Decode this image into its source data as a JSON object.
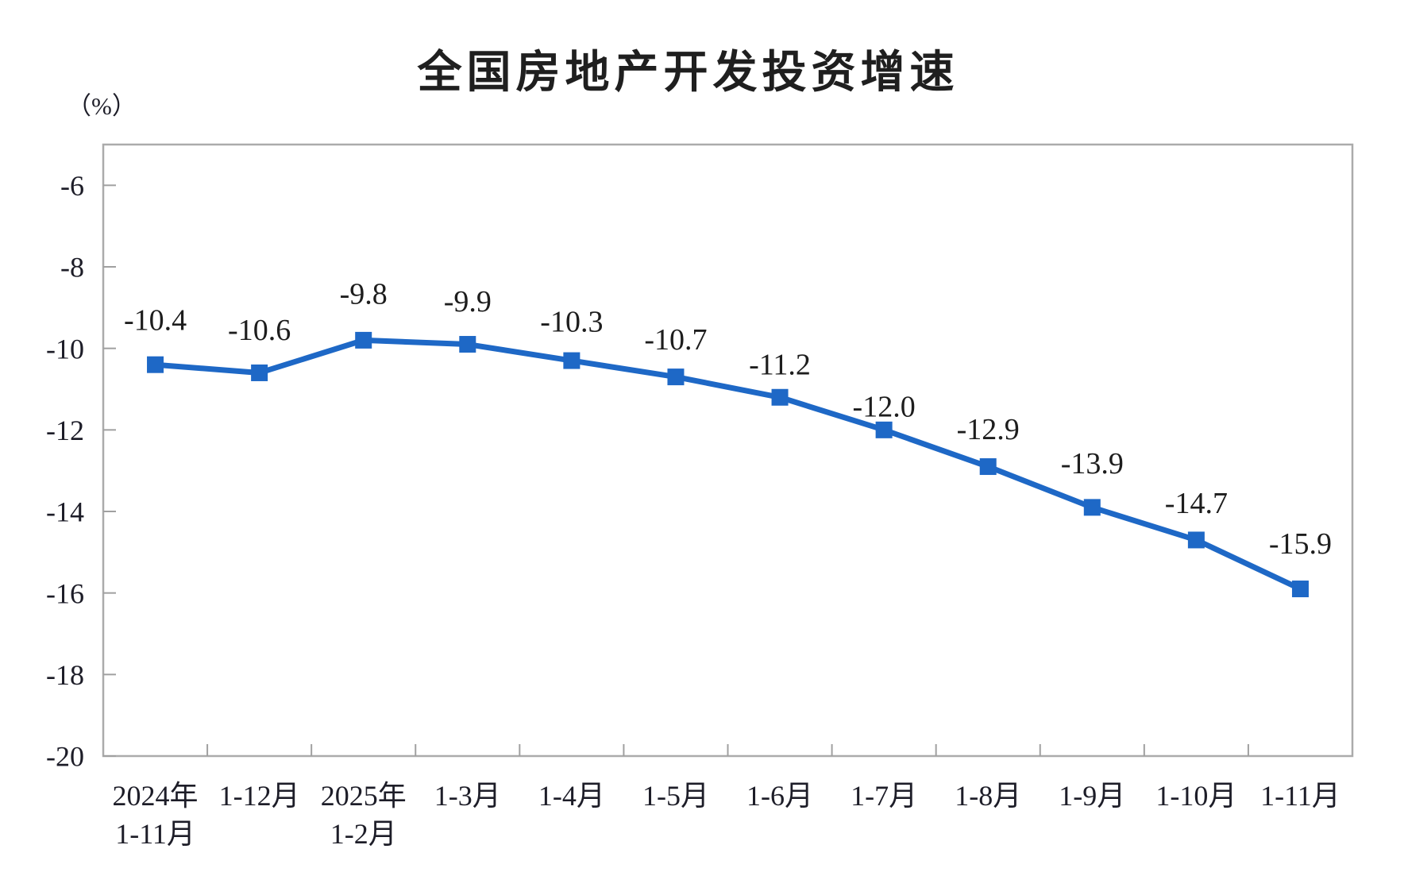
{
  "chart_data": {
    "type": "line",
    "title": "全国房地产开发投资增速",
    "unit_label": "（%）",
    "categories": [
      "2024年\n1-11月",
      "1-12月",
      "2025年\n1-2月",
      "1-3月",
      "1-4月",
      "1-5月",
      "1-6月",
      "1-7月",
      "1-8月",
      "1-9月",
      "1-10月",
      "1-11月"
    ],
    "series": [
      {
        "name": "全国房地产开发投资增速",
        "values": [
          -10.4,
          -10.6,
          -9.8,
          -9.9,
          -10.3,
          -10.7,
          -11.2,
          -12.0,
          -12.9,
          -13.9,
          -14.7,
          -15.9
        ],
        "point_labels": [
          "-10.4",
          "-10.6",
          "-9.8",
          "-9.9",
          "-10.3",
          "-10.7",
          "-11.2",
          "-12.0",
          "-12.9",
          "-13.9",
          "-14.7",
          "-15.9"
        ]
      }
    ],
    "ylabel": "（%）",
    "xlabel": "",
    "ylim": [
      -20,
      -5
    ],
    "y_ticks": [
      -6,
      -8,
      -10,
      -12,
      -14,
      -16,
      -18,
      -20
    ],
    "y_tick_labels": [
      "-6",
      "-8",
      "-10",
      "-12",
      "-14",
      "-16",
      "-18",
      "-20"
    ],
    "grid": false,
    "legend_position": "none",
    "marker": "square",
    "colors": {
      "series": "#1E68C6",
      "axis": "#ABABAB",
      "tick": "#A0A0A0",
      "text": "#1D1D28"
    }
  }
}
